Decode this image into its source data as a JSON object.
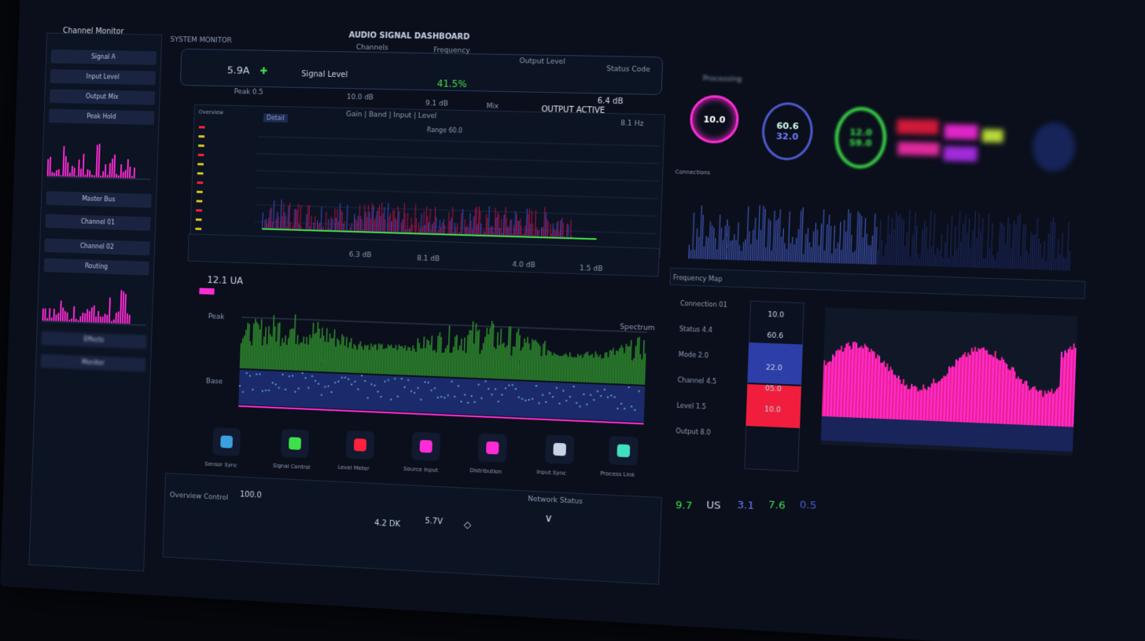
{
  "header": {
    "title": "AUDIO SIGNAL DASHBOARD",
    "subtitle": "SYSTEM MONITOR",
    "left_title": "Channel Monitor"
  },
  "colors": {
    "background": "#0a0f1b",
    "panel": "#0c1322",
    "accent_pink": "#ff2bd6",
    "accent_green": "#3ee04a",
    "accent_blue": "#3a4fd0",
    "accent_red": "#ff2040"
  },
  "sidebar": {
    "items": [
      "Signal A",
      "Input Level",
      "Output Mix",
      "Peak Hold",
      "Master Bus",
      "Channel 01",
      "Channel 02",
      "Routing",
      "Effects",
      "Monitor"
    ]
  },
  "top_bar": {
    "columns": [
      "Channels",
      "Frequency",
      "Output Level",
      "Status Code"
    ],
    "value_main": "5.9A",
    "value_label": "Signal Level",
    "center_value": "41.5%",
    "right_value": "6.4 dB",
    "right_status": "OUTPUT ACTIVE",
    "sub_values": [
      "Peak 0.5",
      "10.0 dB",
      "9.1 dB",
      "Mix",
      "8.1 Hz"
    ]
  },
  "chart1": {
    "tabs": [
      "Overview",
      "Detail"
    ],
    "header": "Gain | Band | Input | Level",
    "box_label": "Range 60.0",
    "footer_values": [
      "6.3 dB",
      "8.1 dB",
      "4.0 dB",
      "1.5 dB"
    ]
  },
  "chart2": {
    "title": "12.1 UA",
    "label_top": "Peak",
    "label_bottom": "Base",
    "right_label": "Spectrum"
  },
  "tiles": [
    "Sensor Sync",
    "Signal Control",
    "Level Meter",
    "Source Input",
    "Distribution",
    "Input Sync",
    "Process Link"
  ],
  "bottom": {
    "left_title": "Overview Control",
    "value1": "100.0",
    "value2": "4.2 DK",
    "value3": "5.7V",
    "right_title": "Network Status"
  },
  "gauges": [
    {
      "top": "10.0",
      "bottom": ""
    },
    {
      "top": "60.6",
      "bottom": "32.0"
    },
    {
      "top": "12.0",
      "bottom": "59.0"
    }
  ],
  "right": {
    "tab_label": "Processing",
    "legend_title": "Connections",
    "list_title": "Frequency Map",
    "list_items": [
      "Connection 01",
      "Status 4.4",
      "Mode 2.0",
      "Channel 4.5",
      "Level 1.5",
      "Output 8.0"
    ],
    "level_values": [
      "10.0",
      "60.6",
      "22.0",
      "05.0",
      "10.0"
    ],
    "bottom_values": [
      "9.7",
      "US",
      "3.1",
      "7.6",
      "0.5"
    ]
  }
}
